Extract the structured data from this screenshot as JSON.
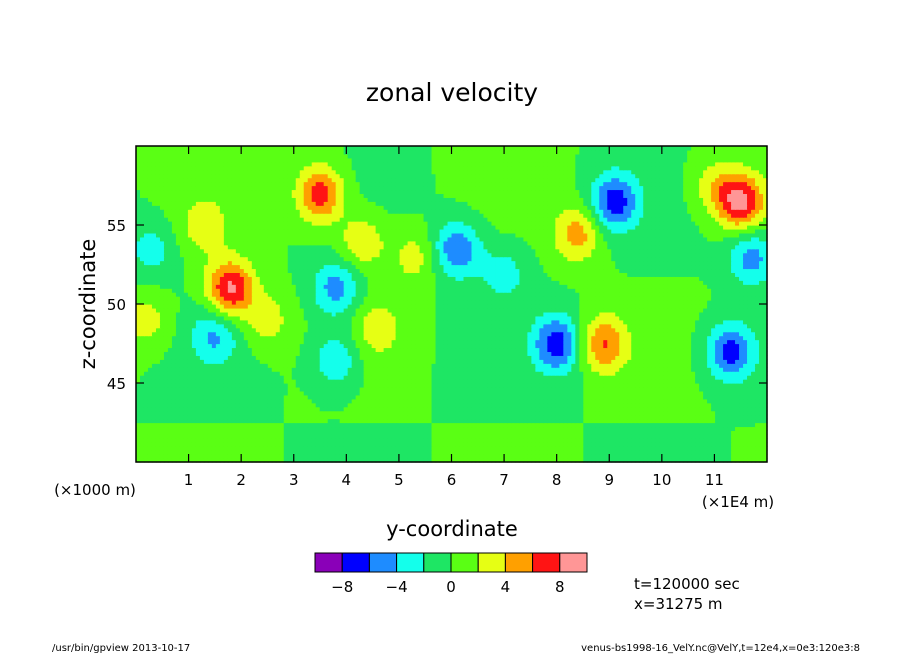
{
  "chart_data": {
    "type": "heatmap",
    "title": "zonal velocity",
    "xlabel": "y-coordinate",
    "ylabel": "z-coordinate",
    "x_ticks": [
      "1",
      "2",
      "3",
      "4",
      "5",
      "6",
      "7",
      "8",
      "9",
      "10",
      "11"
    ],
    "x_tick_values": [
      10000,
      20000,
      30000,
      40000,
      50000,
      60000,
      70000,
      80000,
      90000,
      100000,
      110000
    ],
    "y_ticks": [
      "45",
      "50",
      "55"
    ],
    "y_tick_values": [
      45000,
      50000,
      55000
    ],
    "xlim": [
      0,
      120000
    ],
    "ylim": [
      40000,
      60000
    ],
    "x_scale_note": "(×1E4 m)",
    "y_scale_note": "(×1000 m)",
    "colorbar": {
      "colors": [
        "#8a00b8",
        "#0000ff",
        "#1e8cff",
        "#14ffeb",
        "#1ee664",
        "#5aff14",
        "#e6ff14",
        "#ffa000",
        "#ff1414",
        "#ff9696"
      ],
      "tick_labels": [
        "−8",
        "−4",
        "0",
        "4",
        "8"
      ],
      "boundaries": [
        -10,
        -8,
        -6,
        -4,
        -2,
        0,
        2,
        4,
        6,
        8,
        10
      ]
    },
    "anomalies": [
      {
        "x": 35000,
        "z": 57000,
        "value": 7.5
      },
      {
        "x": 18000,
        "z": 51000,
        "value": 8.5
      },
      {
        "x": 84000,
        "z": 54500,
        "value": 5
      },
      {
        "x": 115000,
        "z": 56500,
        "value": 8.5
      },
      {
        "x": 89000,
        "z": 47500,
        "value": 6
      },
      {
        "x": 46000,
        "z": 48500,
        "value": 3
      },
      {
        "x": 13000,
        "z": 55000,
        "value": 3
      },
      {
        "x": 43000,
        "z": 54000,
        "value": 4
      },
      {
        "x": 53000,
        "z": 53000,
        "value": 3
      },
      {
        "x": 2000,
        "z": 49000,
        "value": 3
      },
      {
        "x": 110000,
        "z": 57500,
        "value": 3
      },
      {
        "x": 25000,
        "z": 49000,
        "value": 3
      },
      {
        "x": 91000,
        "z": 56500,
        "value": -7
      },
      {
        "x": 80000,
        "z": 47500,
        "value": -7
      },
      {
        "x": 113000,
        "z": 47000,
        "value": -7
      },
      {
        "x": 61000,
        "z": 53500,
        "value": -6
      },
      {
        "x": 117000,
        "z": 53000,
        "value": -5
      },
      {
        "x": 38000,
        "z": 51000,
        "value": -5
      },
      {
        "x": 15000,
        "z": 48000,
        "value": -4
      },
      {
        "x": 38000,
        "z": 46500,
        "value": -4
      },
      {
        "x": 70000,
        "z": 52000,
        "value": -3
      },
      {
        "x": 3000,
        "z": 53500,
        "value": -3
      }
    ]
  },
  "annotations": {
    "time": "t=120000 sec",
    "position": "x=31275 m",
    "footer_left": "/usr/bin/gpview  2013-10-17",
    "footer_right": "venus-bs1998-16_VelY.nc@VelY,t=12e4,x=0e3:120e3:8"
  }
}
